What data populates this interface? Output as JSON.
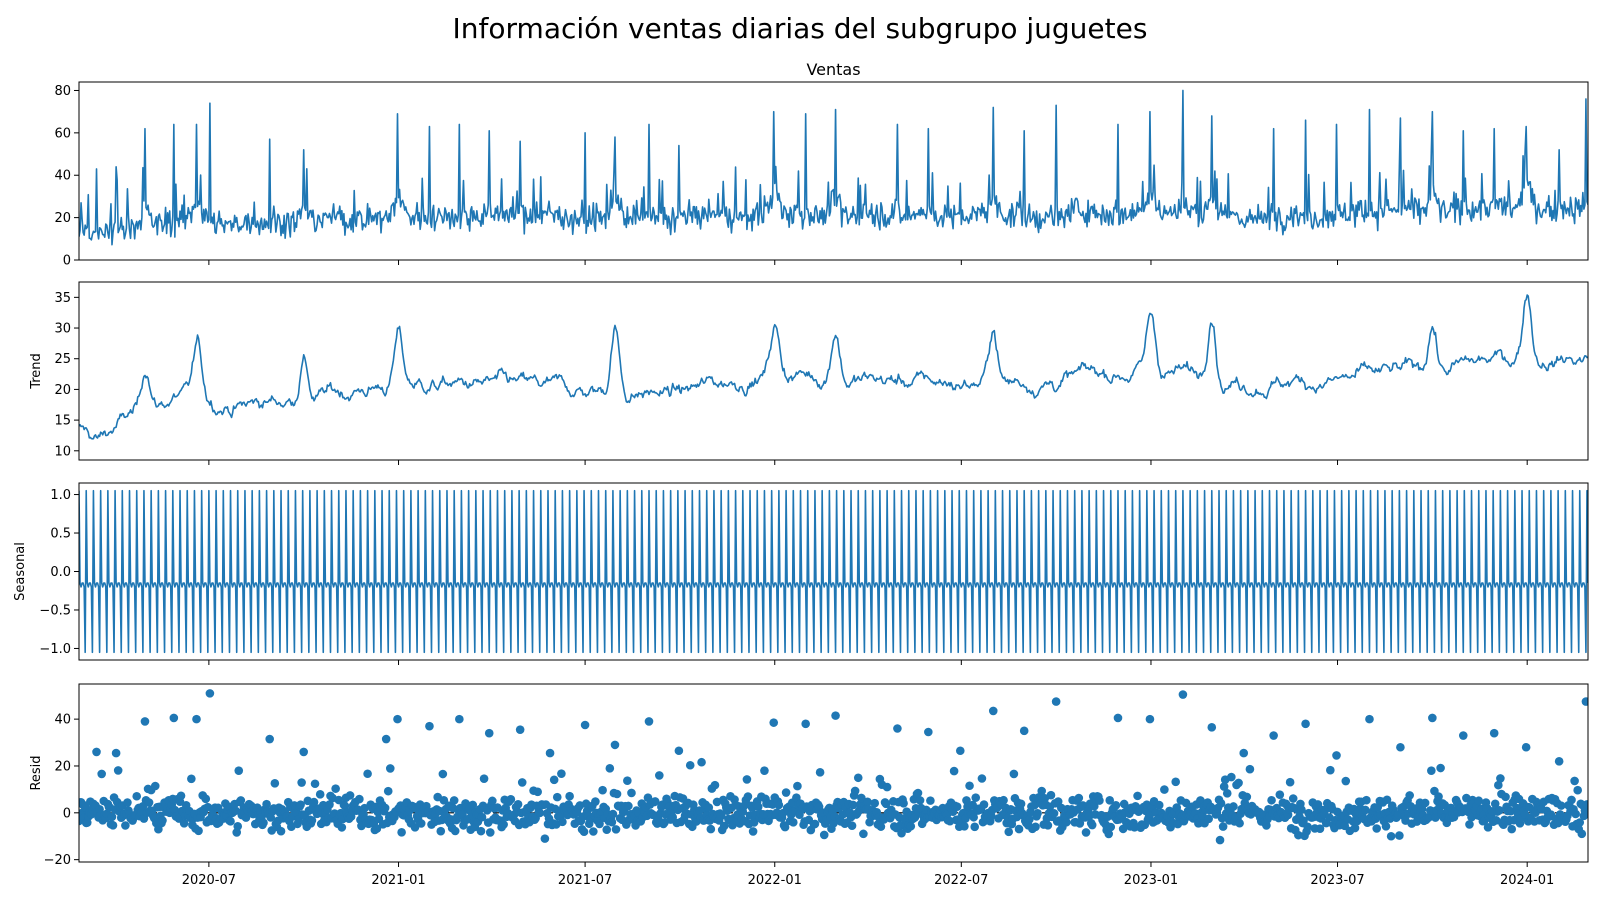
{
  "figure": {
    "title": "Información ventas diarias del subgrupo juguetes"
  },
  "chart_data": [
    {
      "type": "line",
      "title": "Ventas",
      "ylabel": "",
      "x_range": [
        "2020-02-26",
        "2024-02-29"
      ],
      "ylim": [
        0,
        84
      ],
      "yticks": [
        0,
        20,
        40,
        60,
        80
      ],
      "color": "#1f77b4",
      "baseline": 18,
      "series_note_hidden": false,
      "spikes": [
        {
          "x": "2020-02-28",
          "y": 27
        },
        {
          "x": "2020-03-14",
          "y": 43
        },
        {
          "x": "2020-04-02",
          "y": 44
        },
        {
          "x": "2020-04-30",
          "y": 62
        },
        {
          "x": "2020-05-28",
          "y": 64
        },
        {
          "x": "2020-06-19",
          "y": 64
        },
        {
          "x": "2020-07-02",
          "y": 74
        },
        {
          "x": "2020-08-29",
          "y": 57
        },
        {
          "x": "2020-10-01",
          "y": 52
        },
        {
          "x": "2020-12-31",
          "y": 69
        },
        {
          "x": "2021-01-31",
          "y": 63
        },
        {
          "x": "2021-03-01",
          "y": 64
        },
        {
          "x": "2021-03-30",
          "y": 61
        },
        {
          "x": "2021-04-29",
          "y": 56
        },
        {
          "x": "2021-07-01",
          "y": 60
        },
        {
          "x": "2021-07-30",
          "y": 58
        },
        {
          "x": "2021-09-01",
          "y": 64
        },
        {
          "x": "2021-09-30",
          "y": 54
        },
        {
          "x": "2021-12-31",
          "y": 70
        },
        {
          "x": "2022-01-31",
          "y": 69
        },
        {
          "x": "2022-03-01",
          "y": 71
        },
        {
          "x": "2022-04-30",
          "y": 64
        },
        {
          "x": "2022-05-30",
          "y": 62
        },
        {
          "x": "2022-08-01",
          "y": 72
        },
        {
          "x": "2022-08-31",
          "y": 61
        },
        {
          "x": "2022-10-01",
          "y": 73
        },
        {
          "x": "2022-11-30",
          "y": 64
        },
        {
          "x": "2022-12-31",
          "y": 70
        },
        {
          "x": "2023-02-01",
          "y": 80
        },
        {
          "x": "2023-03-01",
          "y": 68
        },
        {
          "x": "2023-04-30",
          "y": 62
        },
        {
          "x": "2023-05-31",
          "y": 66
        },
        {
          "x": "2023-06-30",
          "y": 64
        },
        {
          "x": "2023-08-01",
          "y": 71
        },
        {
          "x": "2023-08-31",
          "y": 67
        },
        {
          "x": "2023-10-01",
          "y": 70
        },
        {
          "x": "2023-10-31",
          "y": 61
        },
        {
          "x": "2023-11-30",
          "y": 62
        },
        {
          "x": "2023-12-31",
          "y": 63
        },
        {
          "x": "2024-02-01",
          "y": 52
        },
        {
          "x": "2024-02-27",
          "y": 76
        }
      ]
    },
    {
      "type": "line",
      "title": "",
      "ylabel": "Trend",
      "x_range": [
        "2020-02-26",
        "2024-02-29"
      ],
      "ylim": [
        8.5,
        37.5
      ],
      "yticks": [
        10,
        15,
        20,
        25,
        30,
        35
      ],
      "color": "#1f77b4",
      "trend_anchors": [
        {
          "x": "2020-02-26",
          "y": 13.5
        },
        {
          "x": "2020-03-15",
          "y": 11.5
        },
        {
          "x": "2020-04-15",
          "y": 15.5
        },
        {
          "x": "2020-06-01",
          "y": 19
        },
        {
          "x": "2020-08-01",
          "y": 17.5
        },
        {
          "x": "2020-10-01",
          "y": 18.5
        },
        {
          "x": "2021-01-01",
          "y": 21
        },
        {
          "x": "2021-04-01",
          "y": 20.5
        },
        {
          "x": "2021-07-01",
          "y": 19.5
        },
        {
          "x": "2021-10-01",
          "y": 19.5
        },
        {
          "x": "2022-01-01",
          "y": 23
        },
        {
          "x": "2022-04-01",
          "y": 21.5
        },
        {
          "x": "2022-07-01",
          "y": 21
        },
        {
          "x": "2022-10-01",
          "y": 21.5
        },
        {
          "x": "2023-01-01",
          "y": 23.5
        },
        {
          "x": "2023-04-01",
          "y": 21.5
        },
        {
          "x": "2023-07-01",
          "y": 21.5
        },
        {
          "x": "2023-10-01",
          "y": 23
        },
        {
          "x": "2024-01-01",
          "y": 25.5
        },
        {
          "x": "2024-02-29",
          "y": 25
        }
      ],
      "trend_peaks": [
        {
          "x": "2020-05-01",
          "y": 23.5
        },
        {
          "x": "2020-06-20",
          "y": 26.5
        },
        {
          "x": "2020-10-01",
          "y": 25.5
        },
        {
          "x": "2021-01-01",
          "y": 29
        },
        {
          "x": "2021-07-30",
          "y": 30.5
        },
        {
          "x": "2022-01-01",
          "y": 30.5
        },
        {
          "x": "2022-03-01",
          "y": 30.5
        },
        {
          "x": "2022-08-01",
          "y": 30
        },
        {
          "x": "2023-01-01",
          "y": 32
        },
        {
          "x": "2023-03-01",
          "y": 34
        },
        {
          "x": "2023-10-01",
          "y": 31
        },
        {
          "x": "2024-01-01",
          "y": 36.5
        }
      ]
    },
    {
      "type": "line",
      "title": "",
      "ylabel": "Seasonal",
      "x_range": [
        "2020-02-26",
        "2024-02-29"
      ],
      "ylim": [
        -1.15,
        1.15
      ],
      "yticks": [
        -1.0,
        -0.5,
        0.0,
        0.5,
        1.0
      ],
      "ytick_labels": [
        "−1.0",
        "−0.5",
        "0.0",
        "0.5",
        "1.0"
      ],
      "color": "#1f77b4",
      "period_days": 7,
      "weekly_pattern": [
        1.05,
        -0.15,
        -0.2,
        -0.15,
        -0.15,
        -0.2,
        -1.05
      ]
    },
    {
      "type": "scatter",
      "title": "",
      "ylabel": "Resid",
      "x_range": [
        "2020-02-26",
        "2024-02-29"
      ],
      "ylim": [
        -21,
        55
      ],
      "yticks": [
        -20,
        0,
        20,
        40
      ],
      "ytick_labels": [
        "−20",
        "0",
        "20",
        "40"
      ],
      "color": "#1f77b4",
      "zero_line": true,
      "outliers": [
        {
          "x": "2020-03-14",
          "y": 26
        },
        {
          "x": "2020-04-02",
          "y": 25.5
        },
        {
          "x": "2020-04-30",
          "y": 39
        },
        {
          "x": "2020-05-28",
          "y": 40.5
        },
        {
          "x": "2020-06-19",
          "y": 40
        },
        {
          "x": "2020-07-02",
          "y": 51
        },
        {
          "x": "2020-07-30",
          "y": 18
        },
        {
          "x": "2020-08-29",
          "y": 31.5
        },
        {
          "x": "2020-10-01",
          "y": 26
        },
        {
          "x": "2020-12-20",
          "y": 31.5
        },
        {
          "x": "2020-12-31",
          "y": 40
        },
        {
          "x": "2021-01-31",
          "y": 37
        },
        {
          "x": "2021-03-01",
          "y": 40
        },
        {
          "x": "2021-03-30",
          "y": 34
        },
        {
          "x": "2021-04-29",
          "y": 35.5
        },
        {
          "x": "2021-05-28",
          "y": 25.5
        },
        {
          "x": "2021-07-01",
          "y": 37.5
        },
        {
          "x": "2021-07-30",
          "y": 29
        },
        {
          "x": "2021-07-25",
          "y": 19
        },
        {
          "x": "2021-09-01",
          "y": 39
        },
        {
          "x": "2021-09-30",
          "y": 26.5
        },
        {
          "x": "2021-12-31",
          "y": 38.5
        },
        {
          "x": "2021-12-22",
          "y": 18
        },
        {
          "x": "2022-01-31",
          "y": 38
        },
        {
          "x": "2022-03-01",
          "y": 41.5
        },
        {
          "x": "2022-04-30",
          "y": 36
        },
        {
          "x": "2022-05-30",
          "y": 34.5
        },
        {
          "x": "2022-06-30",
          "y": 26.5
        },
        {
          "x": "2022-08-01",
          "y": 43.5
        },
        {
          "x": "2022-08-31",
          "y": 35
        },
        {
          "x": "2022-10-01",
          "y": 47.5
        },
        {
          "x": "2022-11-30",
          "y": 40.5
        },
        {
          "x": "2022-12-31",
          "y": 40
        },
        {
          "x": "2023-02-01",
          "y": 50.5
        },
        {
          "x": "2023-03-01",
          "y": 36.5
        },
        {
          "x": "2023-04-01",
          "y": 25.5
        },
        {
          "x": "2023-04-30",
          "y": 33
        },
        {
          "x": "2023-05-31",
          "y": 38
        },
        {
          "x": "2023-06-30",
          "y": 24.5
        },
        {
          "x": "2023-08-01",
          "y": 40
        },
        {
          "x": "2023-08-31",
          "y": 28
        },
        {
          "x": "2023-10-01",
          "y": 40.5
        },
        {
          "x": "2023-10-31",
          "y": 33
        },
        {
          "x": "2023-11-30",
          "y": 34
        },
        {
          "x": "2023-12-31",
          "y": 28
        },
        {
          "x": "2024-02-01",
          "y": 22
        },
        {
          "x": "2024-02-27",
          "y": 47.5
        }
      ]
    }
  ],
  "x_axis": {
    "ticks": [
      {
        "date": "2020-07-01",
        "label": "2020-07"
      },
      {
        "date": "2021-01-01",
        "label": "2021-01"
      },
      {
        "date": "2021-07-01",
        "label": "2021-07"
      },
      {
        "date": "2022-01-01",
        "label": "2022-01"
      },
      {
        "date": "2022-07-01",
        "label": "2022-07"
      },
      {
        "date": "2023-01-01",
        "label": "2023-01"
      },
      {
        "date": "2023-07-01",
        "label": "2023-07"
      },
      {
        "date": "2024-01-01",
        "label": "2024-01"
      }
    ]
  }
}
